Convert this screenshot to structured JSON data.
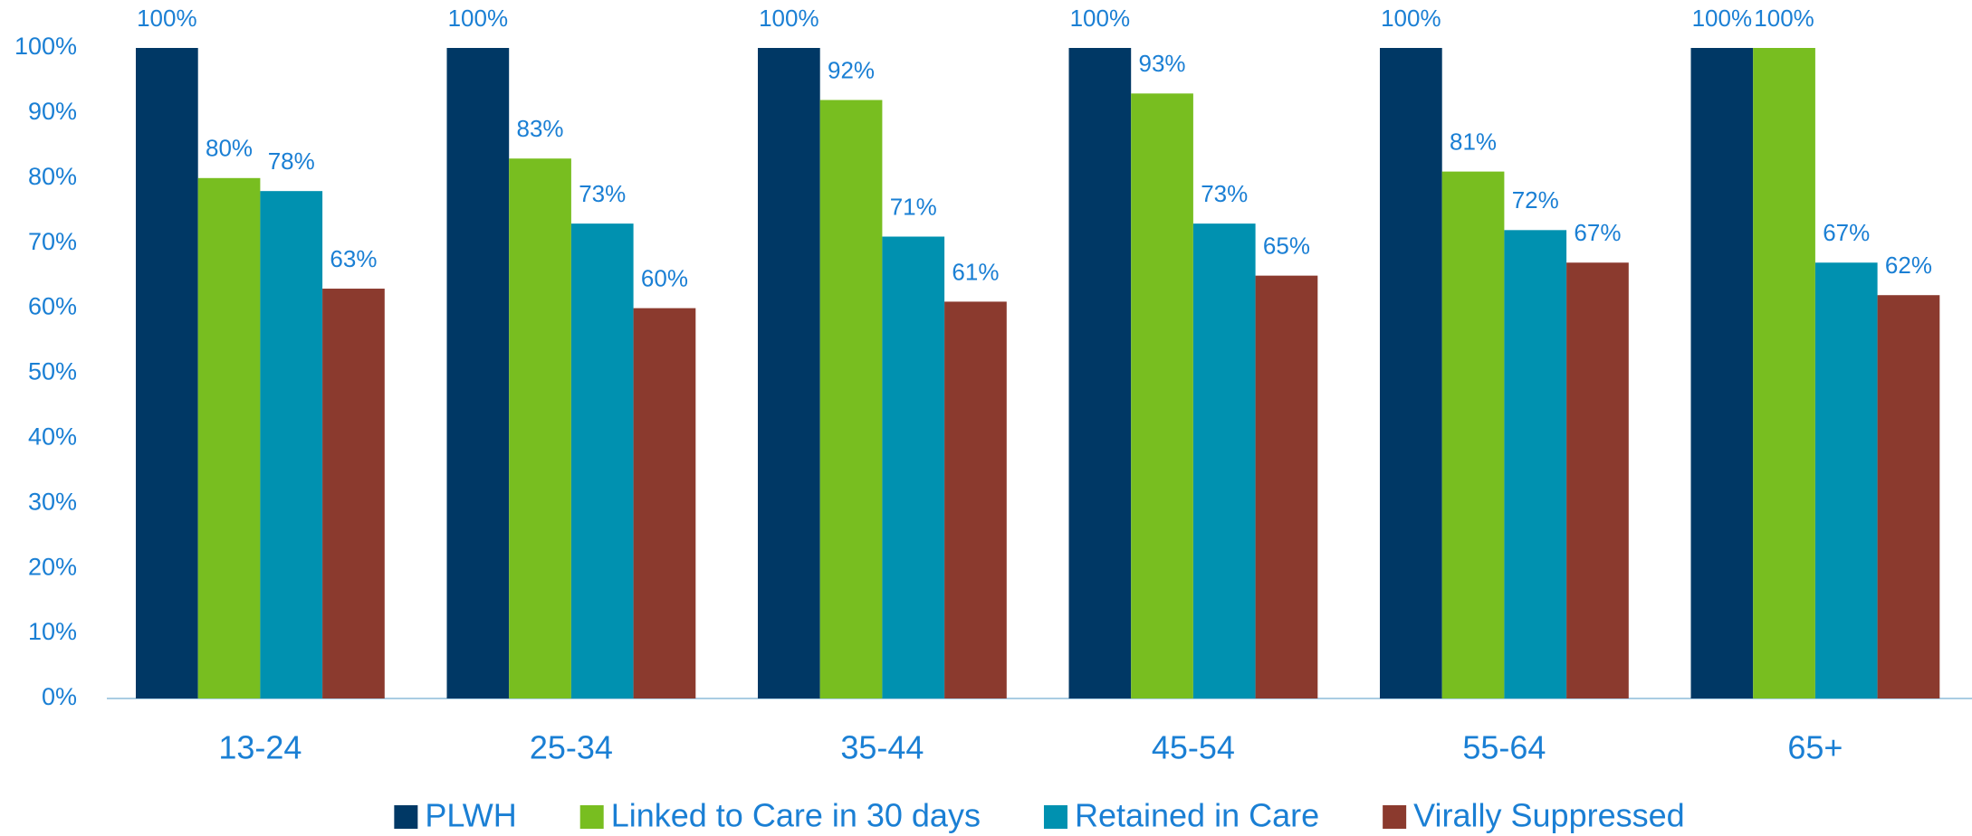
{
  "chart_data": {
    "type": "bar",
    "categories": [
      "13-24",
      "25-34",
      "35-44",
      "45-54",
      "55-64",
      "65+"
    ],
    "series": [
      {
        "name": "PLWH",
        "color": "#003865",
        "values": [
          100,
          100,
          100,
          100,
          100,
          100
        ],
        "value_labels": [
          "100%",
          "100%",
          "100%",
          "100%",
          "100%",
          "100%"
        ]
      },
      {
        "name": "Linked to Care in 30 days",
        "color": "#78be20",
        "values": [
          80,
          83,
          92,
          93,
          81,
          100
        ],
        "value_labels": [
          "80%",
          "83%",
          "92%",
          "93%",
          "81%",
          "100%"
        ]
      },
      {
        "name": "Retained in Care",
        "color": "#0091b0",
        "values": [
          78,
          73,
          71,
          73,
          72,
          67
        ],
        "value_labels": [
          "78%",
          "73%",
          "71%",
          "73%",
          "72%",
          "67%"
        ]
      },
      {
        "name": "Virally Suppressed",
        "color": "#8b3a2e",
        "values": [
          63,
          60,
          61,
          65,
          67,
          62
        ],
        "value_labels": [
          "63%",
          "60%",
          "61%",
          "65%",
          "67%",
          "62%"
        ]
      }
    ],
    "ylim": [
      0,
      100
    ],
    "yticks": [
      {
        "value": 0,
        "label": "0%"
      },
      {
        "value": 10,
        "label": "10%"
      },
      {
        "value": 20,
        "label": "20%"
      },
      {
        "value": 30,
        "label": "30%"
      },
      {
        "value": 40,
        "label": "40%"
      },
      {
        "value": 50,
        "label": "50%"
      },
      {
        "value": 60,
        "label": "60%"
      },
      {
        "value": 70,
        "label": "70%"
      },
      {
        "value": 80,
        "label": "80%"
      },
      {
        "value": 90,
        "label": "90%"
      },
      {
        "value": 100,
        "label": "100%"
      }
    ],
    "legend": "bottom"
  }
}
